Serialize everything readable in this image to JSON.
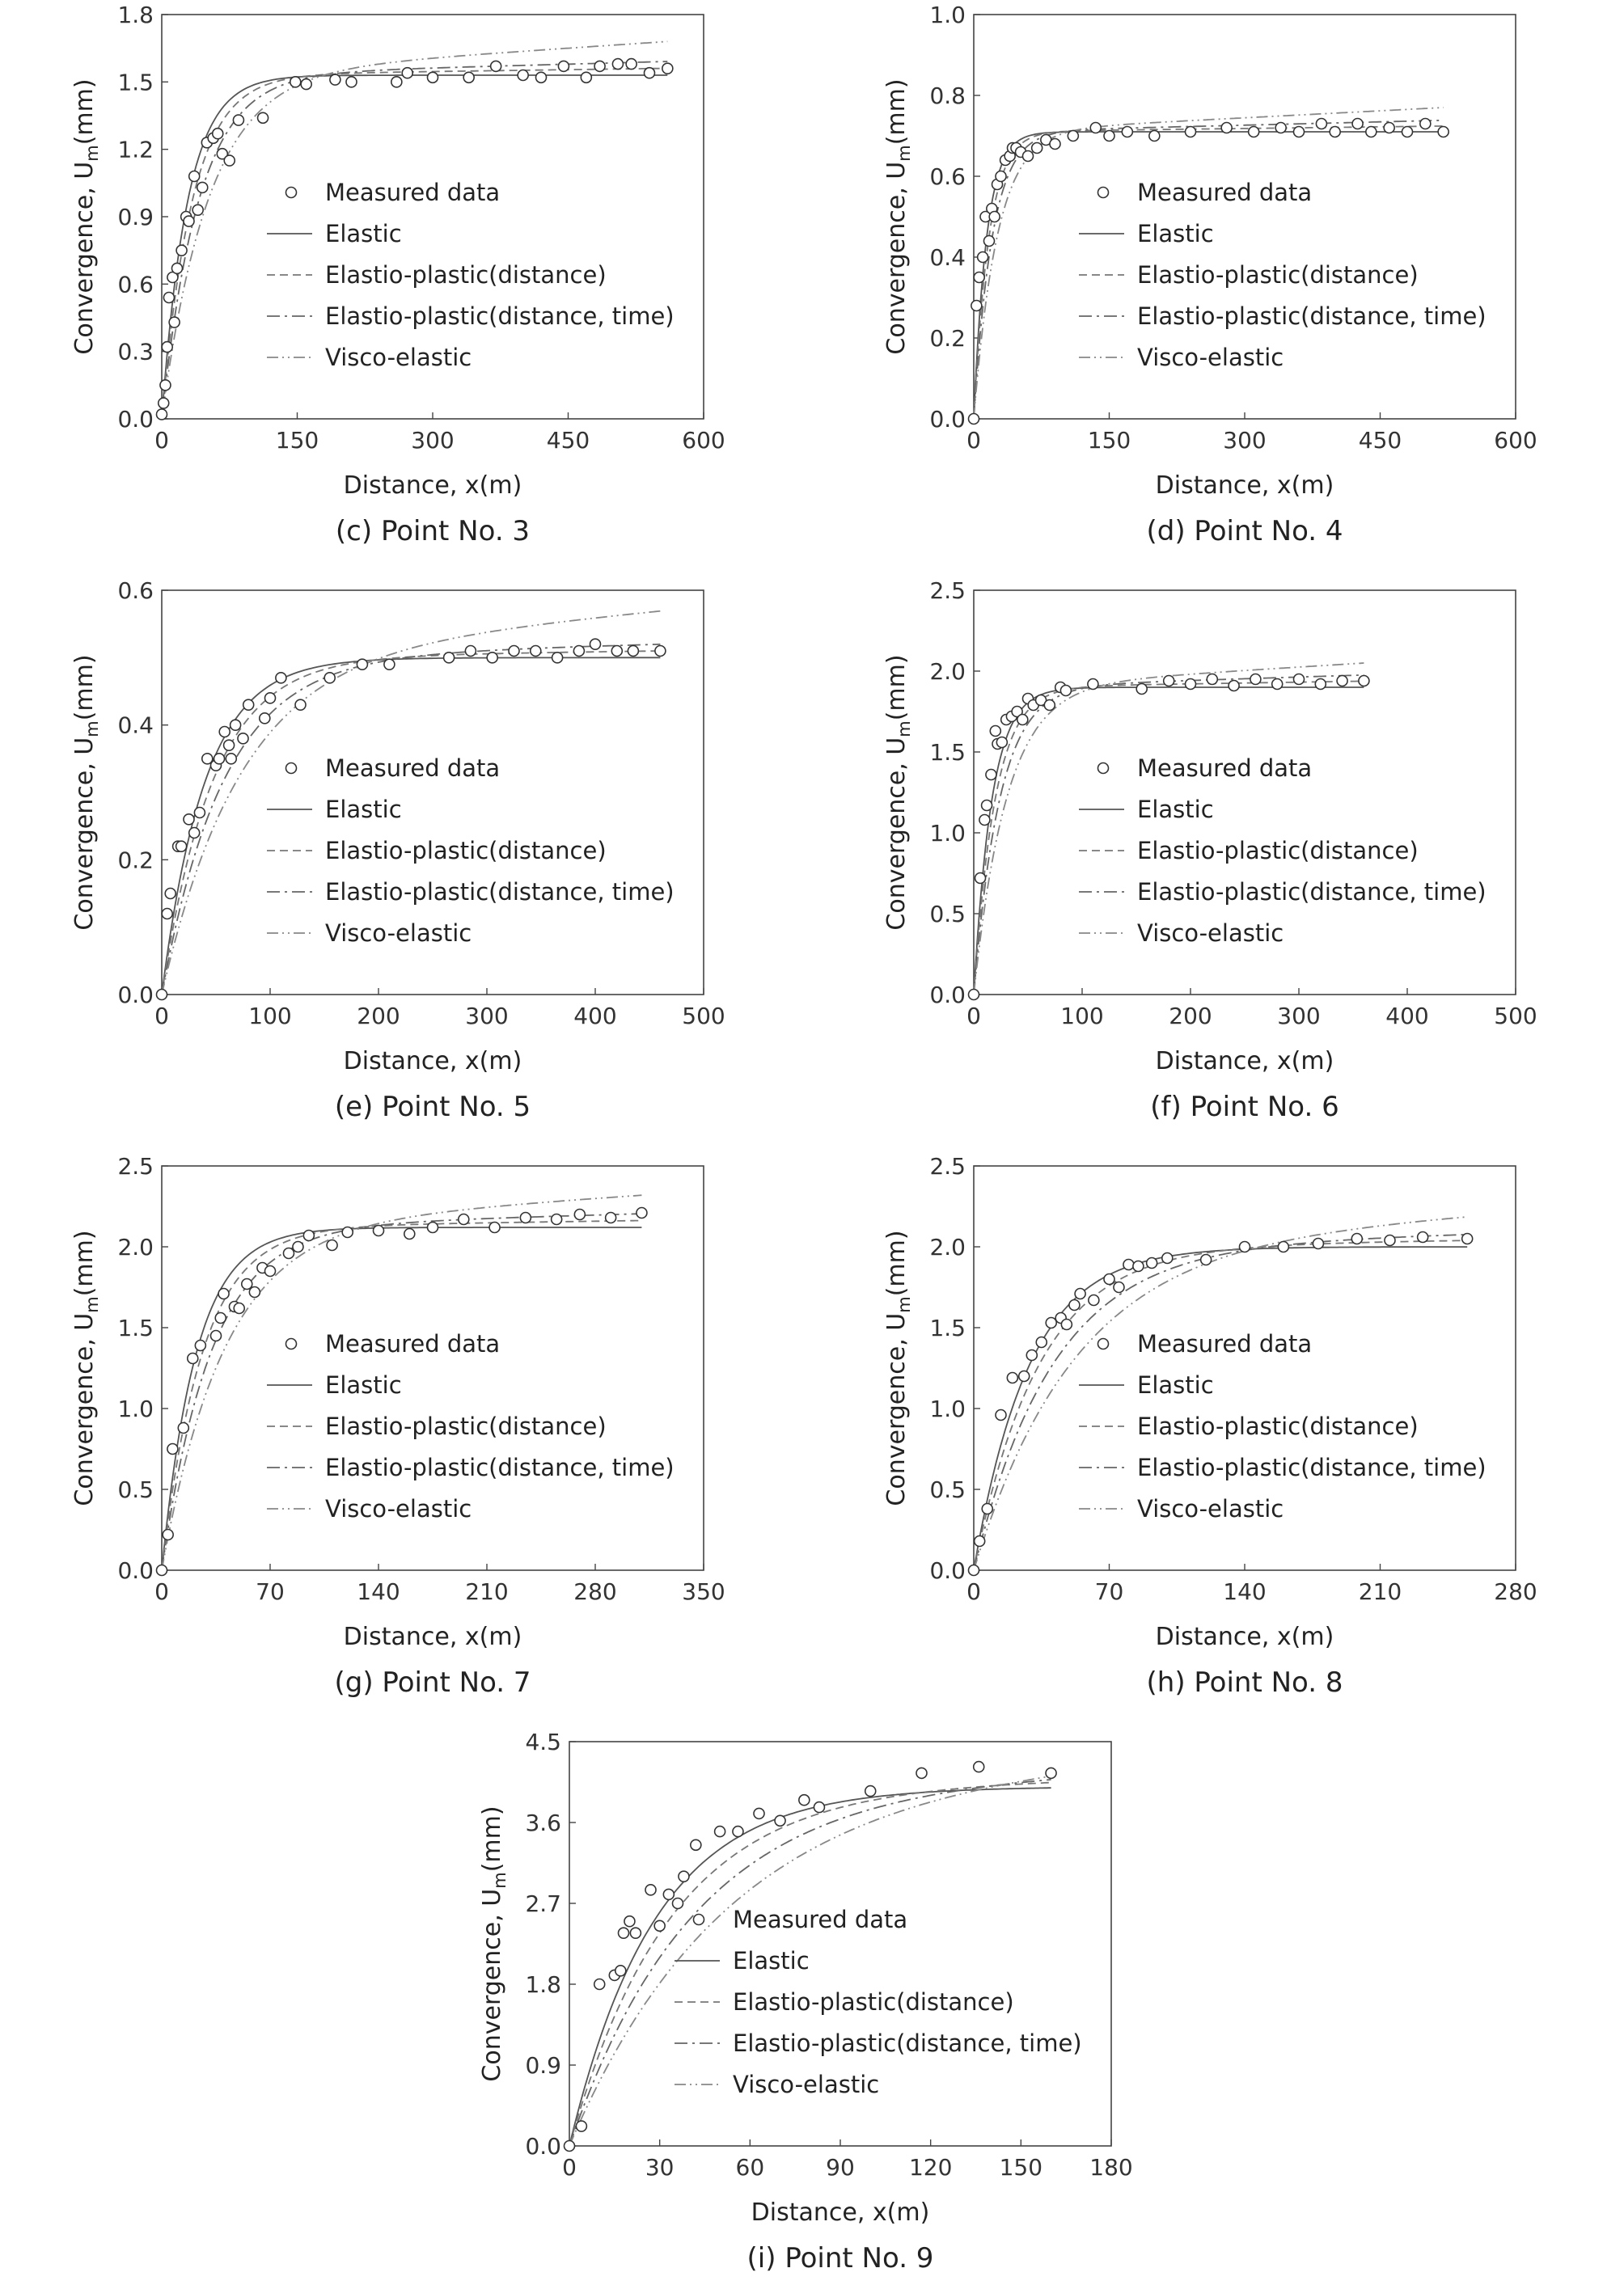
{
  "legend_labels": {
    "measured": "Measured data",
    "elastic": "Elastic",
    "ep_distance": "Elastio-plastic(distance)",
    "ep_distance_time": "Elastio-plastic(distance, time)",
    "visco": "Visco-elastic"
  },
  "chart_data": [
    {
      "type": "scatter",
      "caption": "(c) Point No. 3",
      "xlabel": "Distance, x(m)",
      "ylabel": "Convergence, U",
      "ylabel_sub": "m",
      "ylabel_unit": "(mm)",
      "xlim": [
        0,
        600
      ],
      "xticks": [
        0,
        150,
        300,
        450,
        600
      ],
      "ylim": [
        0,
        1.8
      ],
      "yticks": [
        "0.0",
        "0.3",
        "0.6",
        "0.9",
        "1.2",
        "1.5",
        "1.8"
      ],
      "legend_position": "center",
      "models": {
        "A": 1.53,
        "k": 0.035,
        "tail": 0.15
      },
      "points": [
        [
          0,
          0.02
        ],
        [
          2,
          0.07
        ],
        [
          4,
          0.15
        ],
        [
          6,
          0.32
        ],
        [
          8,
          0.54
        ],
        [
          12,
          0.63
        ],
        [
          14,
          0.43
        ],
        [
          17,
          0.67
        ],
        [
          22,
          0.75
        ],
        [
          27,
          0.9
        ],
        [
          30,
          0.88
        ],
        [
          36,
          1.08
        ],
        [
          40,
          0.93
        ],
        [
          45,
          1.03
        ],
        [
          50,
          1.23
        ],
        [
          57,
          1.25
        ],
        [
          62,
          1.27
        ],
        [
          67,
          1.18
        ],
        [
          75,
          1.15
        ],
        [
          85,
          1.33
        ],
        [
          112,
          1.34
        ],
        [
          148,
          1.5
        ],
        [
          160,
          1.49
        ],
        [
          192,
          1.51
        ],
        [
          210,
          1.5
        ],
        [
          260,
          1.5
        ],
        [
          272,
          1.54
        ],
        [
          300,
          1.52
        ],
        [
          340,
          1.52
        ],
        [
          370,
          1.57
        ],
        [
          400,
          1.53
        ],
        [
          420,
          1.52
        ],
        [
          445,
          1.57
        ],
        [
          470,
          1.52
        ],
        [
          485,
          1.57
        ],
        [
          505,
          1.58
        ],
        [
          520,
          1.58
        ],
        [
          540,
          1.54
        ],
        [
          560,
          1.56
        ]
      ]
    },
    {
      "type": "scatter",
      "caption": "(d) Point No. 4",
      "xlabel": "Distance, x(m)",
      "ylabel": "Convergence, U",
      "ylabel_sub": "m",
      "ylabel_unit": "(mm)",
      "xlim": [
        0,
        600
      ],
      "xticks": [
        0,
        150,
        300,
        450,
        600
      ],
      "ylim": [
        0,
        1.0
      ],
      "yticks": [
        "0.0",
        "0.2",
        "0.4",
        "0.6",
        "0.8",
        "1.0"
      ],
      "legend_position": "center",
      "models": {
        "A": 0.71,
        "k": 0.07,
        "tail": 0.06
      },
      "points": [
        [
          0,
          0.0
        ],
        [
          3,
          0.28
        ],
        [
          6,
          0.35
        ],
        [
          10,
          0.4
        ],
        [
          13,
          0.5
        ],
        [
          17,
          0.44
        ],
        [
          20,
          0.52
        ],
        [
          23,
          0.5
        ],
        [
          26,
          0.58
        ],
        [
          30,
          0.6
        ],
        [
          35,
          0.64
        ],
        [
          40,
          0.65
        ],
        [
          43,
          0.67
        ],
        [
          47,
          0.67
        ],
        [
          52,
          0.66
        ],
        [
          60,
          0.65
        ],
        [
          70,
          0.67
        ],
        [
          80,
          0.69
        ],
        [
          90,
          0.68
        ],
        [
          110,
          0.7
        ],
        [
          135,
          0.72
        ],
        [
          150,
          0.7
        ],
        [
          170,
          0.71
        ],
        [
          200,
          0.7
        ],
        [
          240,
          0.71
        ],
        [
          280,
          0.72
        ],
        [
          310,
          0.71
        ],
        [
          340,
          0.72
        ],
        [
          360,
          0.71
        ],
        [
          385,
          0.73
        ],
        [
          400,
          0.71
        ],
        [
          425,
          0.73
        ],
        [
          440,
          0.71
        ],
        [
          460,
          0.72
        ],
        [
          480,
          0.71
        ],
        [
          500,
          0.73
        ],
        [
          520,
          0.71
        ]
      ]
    },
    {
      "type": "scatter",
      "caption": "(e) Point No. 5",
      "xlabel": "Distance, x(m)",
      "ylabel": "Convergence, U",
      "ylabel_sub": "m",
      "ylabel_unit": "(mm)",
      "xlim": [
        0,
        500
      ],
      "xticks": [
        0,
        100,
        200,
        300,
        400,
        500
      ],
      "ylim": [
        0,
        0.6
      ],
      "yticks": [
        "0.0",
        "0.2",
        "0.4",
        "0.6"
      ],
      "legend_position": "center",
      "models": {
        "A": 0.5,
        "k": 0.025,
        "tail": 0.07
      },
      "points": [
        [
          0,
          0.0
        ],
        [
          5,
          0.12
        ],
        [
          8,
          0.15
        ],
        [
          15,
          0.22
        ],
        [
          18,
          0.22
        ],
        [
          25,
          0.26
        ],
        [
          30,
          0.24
        ],
        [
          35,
          0.27
        ],
        [
          42,
          0.35
        ],
        [
          50,
          0.34
        ],
        [
          53,
          0.35
        ],
        [
          58,
          0.39
        ],
        [
          62,
          0.37
        ],
        [
          64,
          0.35
        ],
        [
          68,
          0.4
        ],
        [
          75,
          0.38
        ],
        [
          80,
          0.43
        ],
        [
          95,
          0.41
        ],
        [
          100,
          0.44
        ],
        [
          110,
          0.47
        ],
        [
          128,
          0.43
        ],
        [
          155,
          0.47
        ],
        [
          185,
          0.49
        ],
        [
          210,
          0.49
        ],
        [
          265,
          0.5
        ],
        [
          285,
          0.51
        ],
        [
          305,
          0.5
        ],
        [
          325,
          0.51
        ],
        [
          345,
          0.51
        ],
        [
          365,
          0.5
        ],
        [
          385,
          0.51
        ],
        [
          400,
          0.52
        ],
        [
          420,
          0.51
        ],
        [
          435,
          0.51
        ],
        [
          460,
          0.51
        ]
      ]
    },
    {
      "type": "scatter",
      "caption": "(f) Point No. 6",
      "xlabel": "Distance, x(m)",
      "ylabel": "Convergence, U",
      "ylabel_sub": "m",
      "ylabel_unit": "(mm)",
      "xlim": [
        0,
        500
      ],
      "xticks": [
        0,
        100,
        200,
        300,
        400,
        500
      ],
      "ylim": [
        0,
        2.5
      ],
      "yticks": [
        "0.0",
        "0.5",
        "1.0",
        "1.5",
        "2.0",
        "2.5"
      ],
      "legend_position": "center",
      "models": {
        "A": 1.9,
        "k": 0.06,
        "tail": 0.15
      },
      "points": [
        [
          0,
          0.0
        ],
        [
          6,
          0.72
        ],
        [
          10,
          1.08
        ],
        [
          12,
          1.17
        ],
        [
          16,
          1.36
        ],
        [
          20,
          1.63
        ],
        [
          22,
          1.55
        ],
        [
          26,
          1.56
        ],
        [
          30,
          1.7
        ],
        [
          35,
          1.72
        ],
        [
          40,
          1.75
        ],
        [
          45,
          1.7
        ],
        [
          50,
          1.83
        ],
        [
          55,
          1.79
        ],
        [
          62,
          1.82
        ],
        [
          70,
          1.79
        ],
        [
          80,
          1.9
        ],
        [
          85,
          1.88
        ],
        [
          110,
          1.92
        ],
        [
          155,
          1.89
        ],
        [
          180,
          1.94
        ],
        [
          200,
          1.92
        ],
        [
          220,
          1.95
        ],
        [
          240,
          1.91
        ],
        [
          260,
          1.95
        ],
        [
          280,
          1.92
        ],
        [
          300,
          1.95
        ],
        [
          320,
          1.92
        ],
        [
          340,
          1.94
        ],
        [
          360,
          1.94
        ]
      ]
    },
    {
      "type": "scatter",
      "caption": "(g) Point No. 7",
      "xlabel": "Distance, x(m)",
      "ylabel": "Convergence, U",
      "ylabel_sub": "m",
      "ylabel_unit": "(mm)",
      "xlim": [
        0,
        350
      ],
      "xticks": [
        0,
        70,
        140,
        210,
        280,
        350
      ],
      "ylim": [
        0,
        2.5
      ],
      "yticks": [
        "0.0",
        "0.5",
        "1.0",
        "1.5",
        "2.0",
        "2.5"
      ],
      "legend_position": "center",
      "models": {
        "A": 2.12,
        "k": 0.045,
        "tail": 0.2
      },
      "points": [
        [
          0,
          0.0
        ],
        [
          4,
          0.22
        ],
        [
          7,
          0.75
        ],
        [
          14,
          0.88
        ],
        [
          20,
          1.31
        ],
        [
          25,
          1.39
        ],
        [
          35,
          1.45
        ],
        [
          38,
          1.56
        ],
        [
          40,
          1.71
        ],
        [
          47,
          1.63
        ],
        [
          50,
          1.62
        ],
        [
          55,
          1.77
        ],
        [
          60,
          1.72
        ],
        [
          65,
          1.87
        ],
        [
          70,
          1.85
        ],
        [
          82,
          1.96
        ],
        [
          88,
          2.0
        ],
        [
          95,
          2.07
        ],
        [
          110,
          2.01
        ],
        [
          120,
          2.09
        ],
        [
          140,
          2.1
        ],
        [
          160,
          2.08
        ],
        [
          175,
          2.12
        ],
        [
          195,
          2.17
        ],
        [
          215,
          2.12
        ],
        [
          235,
          2.18
        ],
        [
          255,
          2.17
        ],
        [
          270,
          2.2
        ],
        [
          290,
          2.18
        ],
        [
          310,
          2.21
        ]
      ]
    },
    {
      "type": "scatter",
      "caption": "(h) Point No. 8",
      "xlabel": "Distance, x(m)",
      "ylabel": "Convergence, U",
      "ylabel_sub": "m",
      "ylabel_unit": "(mm)",
      "xlim": [
        0,
        280
      ],
      "xticks": [
        0,
        70,
        140,
        210,
        280
      ],
      "ylim": [
        0,
        2.5
      ],
      "yticks": [
        "0.0",
        "0.5",
        "1.0",
        "1.5",
        "2.0",
        "2.5"
      ],
      "legend_position": "center",
      "models": {
        "A": 2.0,
        "k": 0.035,
        "tail": 0.2
      },
      "points": [
        [
          0,
          0.0
        ],
        [
          3,
          0.18
        ],
        [
          7,
          0.38
        ],
        [
          14,
          0.96
        ],
        [
          20,
          1.19
        ],
        [
          26,
          1.2
        ],
        [
          30,
          1.33
        ],
        [
          35,
          1.41
        ],
        [
          40,
          1.53
        ],
        [
          45,
          1.56
        ],
        [
          48,
          1.52
        ],
        [
          52,
          1.64
        ],
        [
          55,
          1.71
        ],
        [
          62,
          1.67
        ],
        [
          70,
          1.8
        ],
        [
          75,
          1.75
        ],
        [
          80,
          1.89
        ],
        [
          85,
          1.88
        ],
        [
          92,
          1.9
        ],
        [
          100,
          1.93
        ],
        [
          120,
          1.92
        ],
        [
          140,
          2.0
        ],
        [
          160,
          2.0
        ],
        [
          178,
          2.02
        ],
        [
          198,
          2.05
        ],
        [
          215,
          2.04
        ],
        [
          232,
          2.06
        ],
        [
          255,
          2.05
        ]
      ]
    },
    {
      "type": "scatter",
      "caption": "(i) Point No. 9",
      "xlabel": "Distance, x(m)",
      "ylabel": "Convergence, U",
      "ylabel_sub": "m",
      "ylabel_unit": "(mm)",
      "xlim": [
        0,
        180
      ],
      "xticks": [
        0,
        30,
        60,
        90,
        120,
        150,
        180
      ],
      "ylim": [
        0,
        4.5
      ],
      "yticks": [
        "0.0",
        "0.9",
        "1.8",
        "2.7",
        "3.6",
        "4.5"
      ],
      "legend_position": "center",
      "models": {
        "A": 4.0,
        "k": 0.035,
        "tail": 0.3
      },
      "points": [
        [
          0,
          0.0
        ],
        [
          4,
          0.22
        ],
        [
          10,
          1.8
        ],
        [
          15,
          1.9
        ],
        [
          17,
          1.95
        ],
        [
          18,
          2.37
        ],
        [
          20,
          2.5
        ],
        [
          22,
          2.37
        ],
        [
          27,
          2.85
        ],
        [
          30,
          2.45
        ],
        [
          33,
          2.8
        ],
        [
          36,
          2.7
        ],
        [
          38,
          3.0
        ],
        [
          42,
          3.35
        ],
        [
          50,
          3.5
        ],
        [
          56,
          3.5
        ],
        [
          63,
          3.7
        ],
        [
          70,
          3.62
        ],
        [
          78,
          3.85
        ],
        [
          83,
          3.77
        ],
        [
          100,
          3.95
        ],
        [
          117,
          4.15
        ],
        [
          136,
          4.22
        ],
        [
          160,
          4.15
        ]
      ]
    }
  ]
}
